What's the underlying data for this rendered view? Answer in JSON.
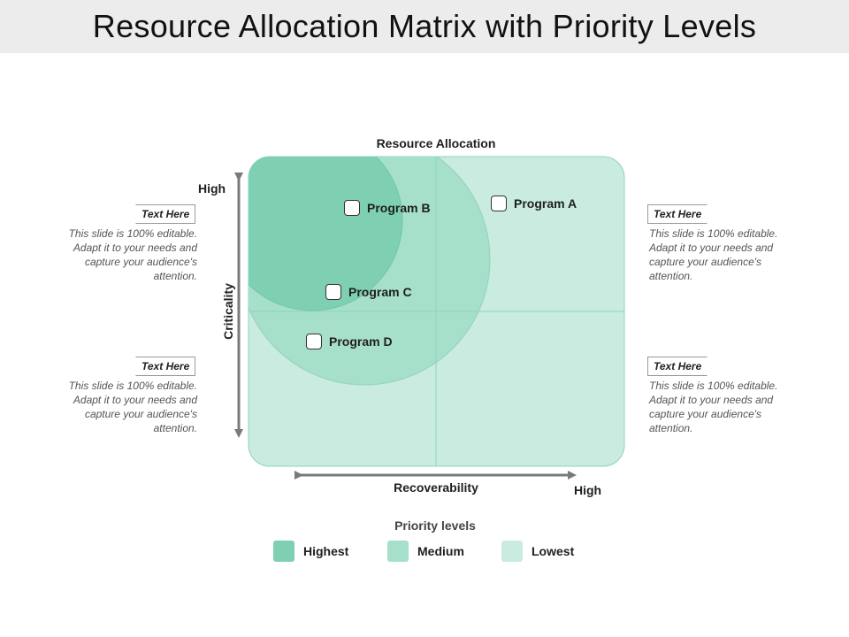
{
  "title": "Resource Allocation Matrix with Priority Levels",
  "axes": {
    "top_label": "Resource Allocation",
    "y_label": "Criticality",
    "y_high": "High",
    "x_label": "Recoverability",
    "x_high": "High"
  },
  "colors": {
    "highest": "#7fd0b3",
    "medium": "#a6dfca",
    "lowest": "#c9ebe0",
    "arrow": "#7a7a7a"
  },
  "programs": [
    {
      "label": "Program A"
    },
    {
      "label": "Program B"
    },
    {
      "label": "Program C"
    },
    {
      "label": "Program D"
    }
  ],
  "callouts": [
    {
      "tag": "Text Here",
      "text": "This slide is 100% editable. Adapt it to your needs and capture your audience's attention."
    },
    {
      "tag": "Text Here",
      "text": "This slide is 100% editable. Adapt it to your needs and capture your audience's attention."
    },
    {
      "tag": "Text Here",
      "text": "This slide is 100% editable. Adapt it to your needs and capture your audience's attention."
    },
    {
      "tag": "Text Here",
      "text": "This slide is 100% editable. Adapt it to your needs and capture your audience's attention."
    }
  ],
  "legend": {
    "title": "Priority levels",
    "items": [
      {
        "label": "Highest",
        "color": "#7fd0b3"
      },
      {
        "label": "Medium",
        "color": "#a6dfca"
      },
      {
        "label": "Lowest",
        "color": "#c9ebe0"
      }
    ]
  }
}
